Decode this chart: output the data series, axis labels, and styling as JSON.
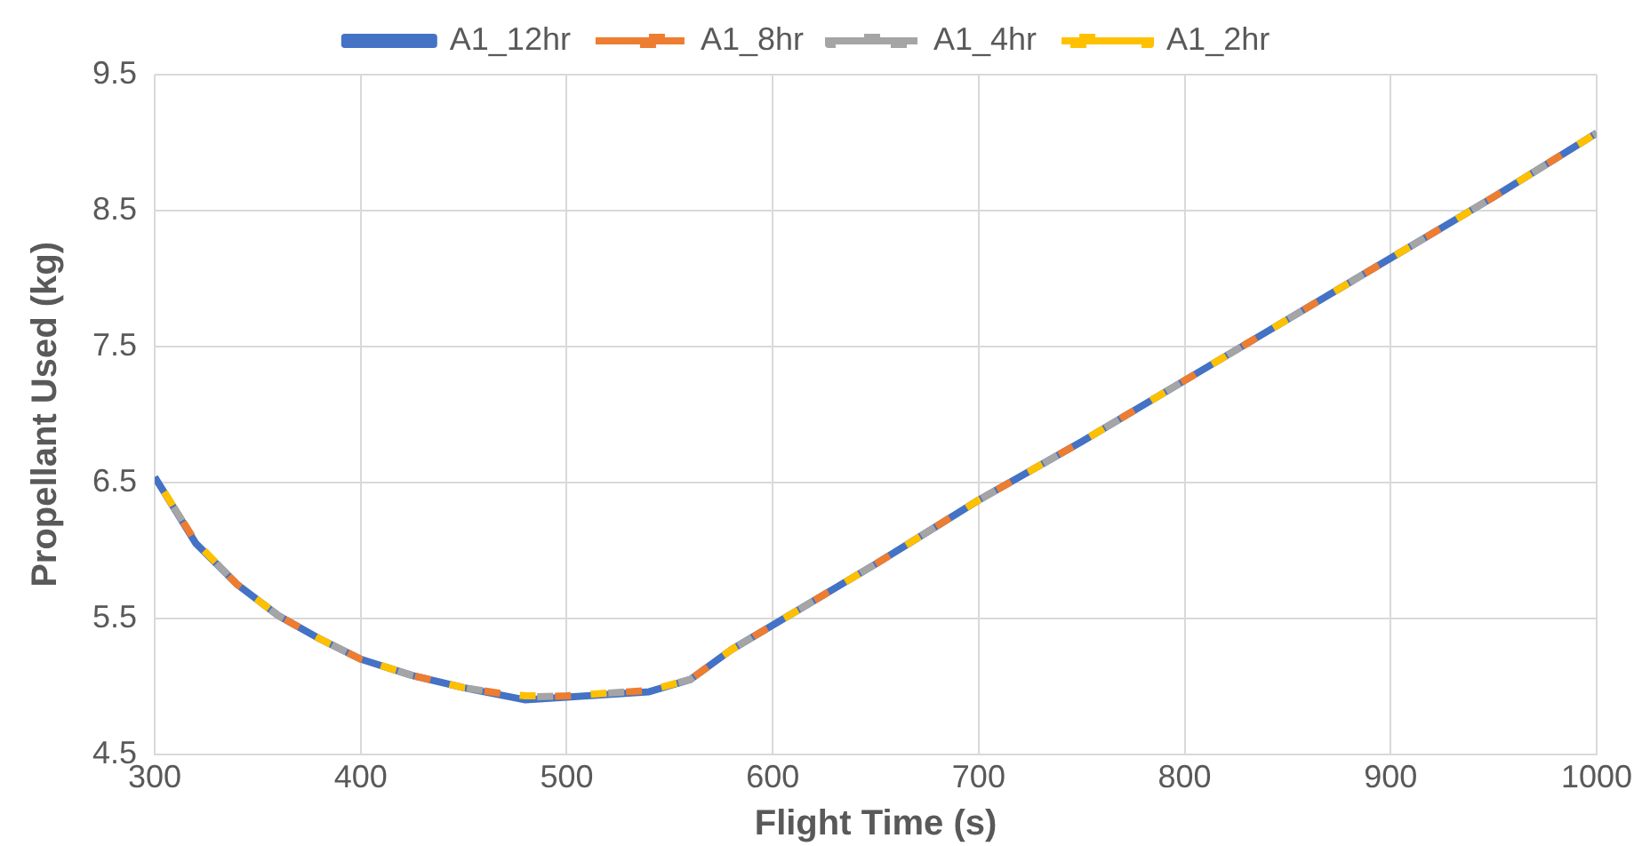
{
  "chart_data": {
    "type": "line",
    "xlabel": "Flight Time (s)",
    "ylabel": "Propellant Used (kg)",
    "x": [
      300,
      320,
      340,
      360,
      380,
      400,
      425,
      450,
      480,
      500,
      520,
      540,
      560,
      580,
      600,
      650,
      700,
      750,
      800,
      850,
      900,
      950,
      1000
    ],
    "series": [
      {
        "name": "A1_12hr",
        "color": "#4472c4",
        "line_style": "solid",
        "values": [
          6.54,
          6.05,
          5.75,
          5.52,
          5.35,
          5.2,
          5.08,
          4.99,
          4.9,
          4.92,
          4.94,
          4.96,
          5.05,
          5.27,
          5.45,
          5.9,
          6.37,
          6.8,
          7.25,
          7.7,
          8.15,
          8.6,
          9.07
        ]
      },
      {
        "name": "A1_8hr",
        "color": "#ed7d31",
        "line_style": "dashed",
        "values": [
          6.54,
          6.06,
          5.75,
          5.52,
          5.35,
          5.2,
          5.08,
          4.99,
          4.92,
          4.93,
          4.95,
          4.97,
          5.05,
          5.27,
          5.45,
          5.9,
          6.37,
          6.8,
          7.25,
          7.7,
          8.15,
          8.6,
          9.07
        ]
      },
      {
        "name": "A1_4hr",
        "color": "#a5a5a5",
        "line_style": "dashed",
        "values": [
          6.54,
          6.06,
          5.75,
          5.52,
          5.35,
          5.2,
          5.08,
          4.99,
          4.92,
          4.93,
          4.95,
          4.97,
          5.05,
          5.27,
          5.45,
          5.9,
          6.37,
          6.8,
          7.25,
          7.7,
          8.15,
          8.6,
          9.07
        ]
      },
      {
        "name": "A1_2hr",
        "color": "#ffc000",
        "line_style": "dashed",
        "values": [
          6.54,
          6.06,
          5.75,
          5.52,
          5.35,
          5.2,
          5.08,
          4.99,
          4.93,
          4.93,
          4.95,
          4.97,
          5.05,
          5.27,
          5.45,
          5.9,
          6.37,
          6.8,
          7.25,
          7.7,
          8.15,
          8.6,
          9.07
        ]
      }
    ],
    "xlim": [
      300,
      1000
    ],
    "xticks": [
      300,
      400,
      500,
      600,
      700,
      800,
      900,
      1000
    ],
    "ylim": [
      4.5,
      9.5
    ],
    "yticks": [
      4.5,
      5.5,
      6.5,
      7.5,
      8.5,
      9.5
    ],
    "grid": true,
    "legend": "top",
    "marker": "none"
  }
}
